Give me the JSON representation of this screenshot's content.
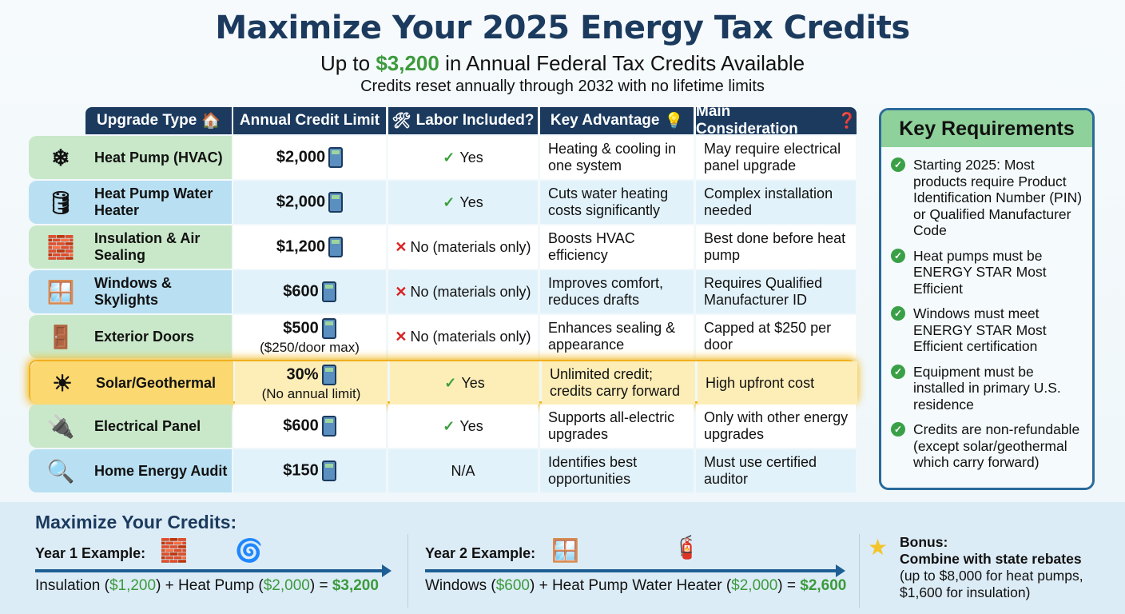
{
  "title": "Maximize Your 2025 Energy Tax Credits",
  "subtitle": {
    "pre": "Up to ",
    "amount": "$3,200",
    "post": " in Annual Federal Tax Credits Available"
  },
  "tagline": "Credits reset annually through 2032 with no lifetime limits",
  "headers": [
    "Upgrade Type",
    "Annual Credit Limit",
    "Labor Included?",
    "Key Advantage",
    "Main Consideration"
  ],
  "rows": [
    {
      "type": "Heat Pump (HVAC)",
      "icon": "air-conditioner",
      "limit": "$2,000",
      "limit_note": "",
      "labor": "Yes",
      "labor_ok": true,
      "advantage": "Heating & cooling in one system",
      "consideration": "May require electrical panel upgrade"
    },
    {
      "type": "Heat Pump Water Heater",
      "icon": "water-heater",
      "limit": "$2,000",
      "limit_note": "",
      "labor": "Yes",
      "labor_ok": true,
      "advantage": "Cuts water heating costs significantly",
      "consideration": "Complex installation needed"
    },
    {
      "type": "Insulation & Air Sealing",
      "icon": "insulation",
      "limit": "$1,200",
      "limit_note": "",
      "labor": "No (materials only)",
      "labor_ok": false,
      "advantage": "Boosts HVAC efficiency",
      "consideration": "Best done before heat pump"
    },
    {
      "type": "Windows & Skylights",
      "icon": "window",
      "limit": "$600",
      "limit_note": "",
      "labor": "No (materials only)",
      "labor_ok": false,
      "advantage": "Improves comfort, reduces drafts",
      "consideration": "Requires Qualified Manufacturer ID"
    },
    {
      "type": "Exterior Doors",
      "icon": "door",
      "limit": "$500",
      "limit_note": "($250/door max)",
      "labor": "No (materials only)",
      "labor_ok": false,
      "advantage": "Enhances sealing & appearance",
      "consideration": "Capped at $250 per door"
    },
    {
      "type": "Solar/Geothermal",
      "icon": "solar-panel",
      "limit": "30%",
      "limit_note": "(No annual limit)",
      "labor": "Yes",
      "labor_ok": true,
      "advantage": "Unlimited credit; credits carry forward",
      "consideration": "High upfront cost",
      "highlight": true
    },
    {
      "type": "Electrical Panel",
      "icon": "electrical-panel",
      "limit": "$600",
      "limit_note": "",
      "labor": "Yes",
      "labor_ok": true,
      "advantage": "Supports all-electric upgrades",
      "consideration": "Only with other energy upgrades"
    },
    {
      "type": "Home Energy Audit",
      "icon": "house-magnifier",
      "limit": "$150",
      "limit_note": "",
      "labor": "N/A",
      "labor_ok": null,
      "advantage": "Identifies best opportunities",
      "consideration": "Must use certified auditor"
    }
  ],
  "requirements": {
    "title": "Key Requirements",
    "items": [
      "Starting 2025: Most products require Product Identification Number (PIN) or Qualified Manufacturer Code",
      "Heat pumps must be ENERGY STAR Most Efficient",
      "Windows must meet ENERGY STAR Most Efficient certification",
      "Equipment must be installed in primary U.S. residence",
      "Credits are non-refundable (except solar/geothermal which carry forward)"
    ]
  },
  "bottom": {
    "title": "Maximize Your Credits:",
    "year1": {
      "label": "Year 1 Example:",
      "a": "Insulation (",
      "a_amt": "$1,200",
      "b": ") + Heat Pump (",
      "b_amt": "$2,000",
      "c": ") = ",
      "total": "$3,200"
    },
    "year2": {
      "label": "Year 2 Example:",
      "a": "Windows (",
      "a_amt": "$600",
      "b": ") + Heat Pump Water Heater (",
      "b_amt": "$2,000",
      "c": ") = ",
      "total": "$2,600"
    },
    "bonus": {
      "label": "Bonus:",
      "line1": "Combine with state rebates",
      "line2": "(up to $8,000 for heat pumps, $1,600 for insulation)"
    }
  },
  "colors": {
    "navy": "#1b3a5e",
    "green": "#3c9a3c",
    "highlight": "#fdeeb8"
  }
}
